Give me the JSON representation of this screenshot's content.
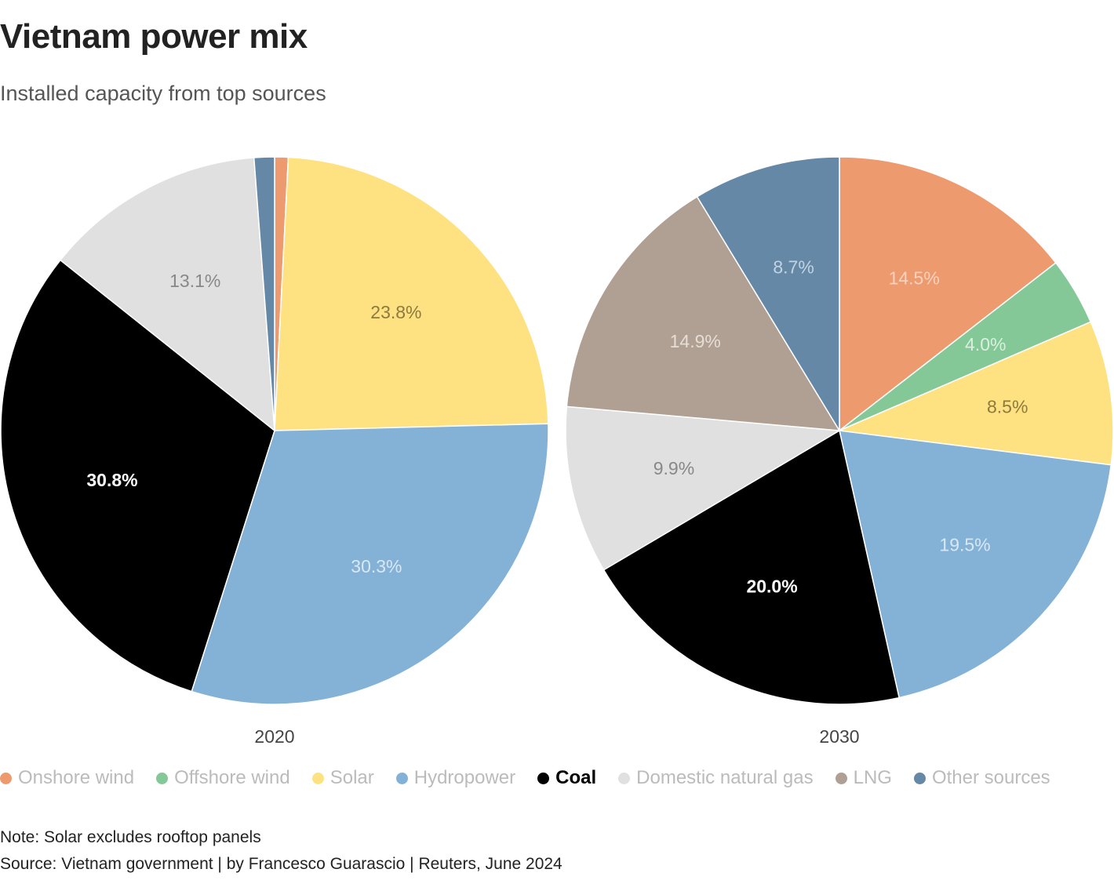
{
  "header": {
    "title": "Vietnam power mix",
    "subtitle": "Installed capacity from top sources"
  },
  "chart_data": {
    "type": "pie",
    "title": "Vietnam power mix",
    "subtitle": "Installed capacity from top sources",
    "categories": [
      "Onshore wind",
      "Offshore wind",
      "Solar",
      "Hydropower",
      "Coal",
      "Domestic natural gas",
      "LNG",
      "Other sources"
    ],
    "colors": [
      "#ee9a6f",
      "#85c897",
      "#fee282",
      "#84b2d7",
      "#000000",
      "#e0e0e0",
      "#b0a093",
      "#6588a7"
    ],
    "label_colors": [
      "#f7d3bf",
      "#d9f0df",
      "#8c7a3e",
      "#d9e7f3",
      "#ffffff",
      "#888888",
      "#e6ddd5",
      "#c3d3e2"
    ],
    "pies": [
      {
        "name": "2020",
        "values": [
          0.8,
          0,
          23.8,
          30.3,
          30.8,
          13.1,
          0,
          1.2
        ],
        "labels": [
          "",
          "",
          "23.8%",
          "30.3%",
          "30.8%",
          "13.1%",
          "",
          ""
        ]
      },
      {
        "name": "2030",
        "values": [
          14.5,
          4.0,
          8.5,
          19.5,
          20.0,
          9.9,
          14.9,
          8.7
        ],
        "labels": [
          "14.5%",
          "4.0%",
          "8.5%",
          "19.5%",
          "20.0%",
          "9.9%",
          "14.9%",
          "8.7%"
        ]
      }
    ],
    "highlighted": "Coal",
    "legend_position": "bottom"
  },
  "footer": {
    "note": "Note: Solar excludes rooftop panels",
    "source": "Source: Vietnam government | by Francesco Guarascio | Reuters, June 2024"
  }
}
